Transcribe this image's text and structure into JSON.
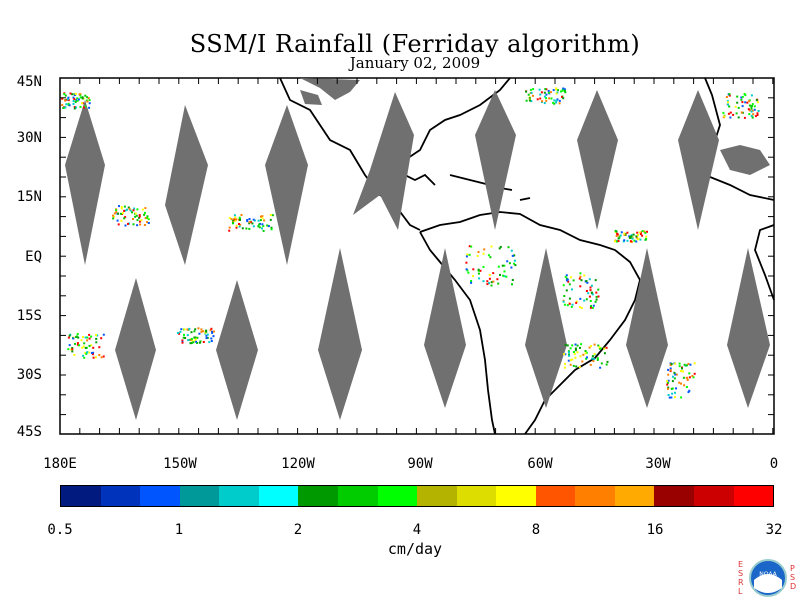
{
  "title": "SSM/I Rainfall (Ferriday algorithm)",
  "subtitle": "January 02, 2009",
  "lat_labels": [
    "45N",
    "30N",
    "15N",
    "EQ",
    "15S",
    "30S",
    "45S"
  ],
  "lon_labels": [
    "180E",
    "150W",
    "120W",
    "90W",
    "60W",
    "30W",
    "0"
  ],
  "colorbar": {
    "colors": [
      "#001a80",
      "#0033bb",
      "#0055ff",
      "#009999",
      "#00cccc",
      "#00ffff",
      "#009900",
      "#00cc00",
      "#00ff00",
      "#b3b300",
      "#dddd00",
      "#ffff00",
      "#ff5500",
      "#ff8000",
      "#ffaa00",
      "#990000",
      "#cc0000",
      "#ff0000"
    ],
    "tick_labels": [
      "0.5",
      "1",
      "2",
      "4",
      "8",
      "16",
      "32"
    ],
    "units": "cm/day"
  },
  "logo": {
    "left_letters": "ESRL",
    "right_letters": "PSD",
    "text": "NOAA"
  }
}
